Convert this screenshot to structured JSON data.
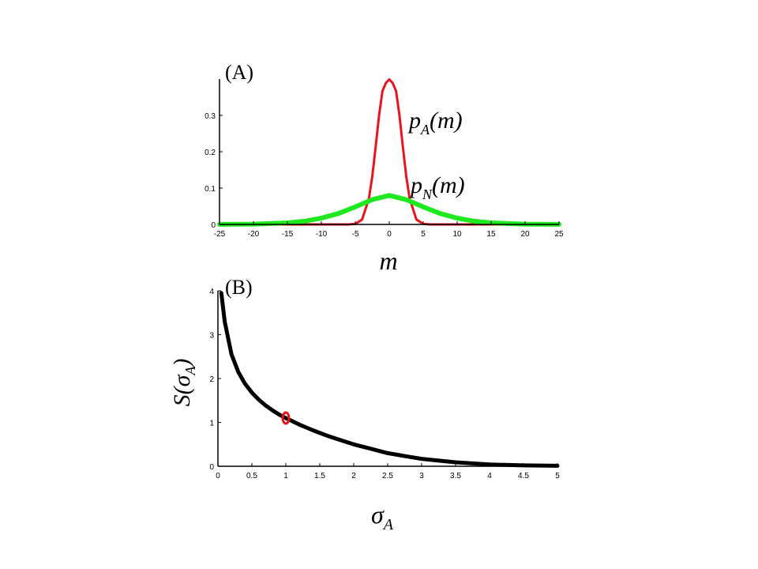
{
  "chart_data": [
    {
      "type": "line",
      "panel_label": "(A)",
      "xlabel": "m",
      "ylabel": "",
      "xlim": [
        -25,
        25
      ],
      "ylim": [
        0,
        0.4
      ],
      "xticks": [
        "-25",
        "-20",
        "-15",
        "-10",
        "-5",
        "0",
        "5",
        "10",
        "15",
        "20",
        "25"
      ],
      "yticks": [
        "0",
        "0.1",
        "0.2",
        "0.3"
      ],
      "grid": false,
      "series": [
        {
          "name": "p_A(m)",
          "label_main": "p",
          "label_sub": "A",
          "label_tail": "(m)",
          "color": "#e8141b",
          "x": [
            -25,
            -6,
            -5,
            -4,
            -3,
            -2.5,
            -2,
            -1.5,
            -1,
            -0.5,
            0,
            0.5,
            1,
            1.5,
            2,
            2.5,
            3,
            4,
            5,
            6,
            25
          ],
          "y": [
            0,
            0.0001,
            0.0015,
            0.0134,
            0.0711,
            0.1323,
            0.2139,
            0.3005,
            0.3669,
            0.3891,
            0.399,
            0.3891,
            0.3669,
            0.3005,
            0.2139,
            0.1323,
            0.0711,
            0.0134,
            0.0015,
            0.0001,
            0
          ]
        },
        {
          "name": "p_N(m)",
          "label_main": "p",
          "label_sub": "N",
          "label_tail": "(m)",
          "color": "#1ee81e",
          "x": [
            -25,
            -20,
            -15,
            -12.5,
            -10,
            -7.5,
            -5,
            -2.5,
            0,
            2.5,
            5,
            7.5,
            10,
            12.5,
            15,
            20,
            25
          ],
          "y": [
            0.0002,
            0.0009,
            0.0043,
            0.0089,
            0.0173,
            0.0301,
            0.0483,
            0.0683,
            0.0798,
            0.0683,
            0.0483,
            0.0301,
            0.0173,
            0.0089,
            0.0043,
            0.0009,
            0.0002
          ]
        }
      ]
    },
    {
      "type": "line",
      "panel_label": "(B)",
      "xlabel_main": "σ",
      "xlabel_sub": "A",
      "ylabel_main": "S(σ",
      "ylabel_sub": "A",
      "ylabel_tail": ")",
      "xlim": [
        0,
        5
      ],
      "ylim": [
        0,
        4
      ],
      "xticks": [
        "0",
        "0.5",
        "1",
        "1.5",
        "2",
        "2.5",
        "3",
        "3.5",
        "4",
        "4.5",
        "5"
      ],
      "yticks": [
        "0",
        "1",
        "2",
        "3",
        "4"
      ],
      "grid": false,
      "series": [
        {
          "name": "S(σ_A)",
          "color": "#000000",
          "x": [
            0.05,
            0.1,
            0.2,
            0.3,
            0.4,
            0.5,
            0.6,
            0.7,
            0.8,
            0.9,
            1.0,
            1.2,
            1.4,
            1.6,
            1.8,
            2.0,
            2.2,
            2.5,
            2.8,
            3.0,
            3.5,
            4.0,
            4.5,
            5.0
          ],
          "y": [
            3.95,
            3.3,
            2.55,
            2.15,
            1.88,
            1.68,
            1.52,
            1.39,
            1.28,
            1.18,
            1.1,
            0.95,
            0.82,
            0.7,
            0.6,
            0.5,
            0.42,
            0.3,
            0.22,
            0.17,
            0.09,
            0.04,
            0.02,
            0.01
          ]
        }
      ],
      "marker": {
        "x": 1.0,
        "y": 1.1,
        "color": "#e8141b"
      }
    }
  ]
}
